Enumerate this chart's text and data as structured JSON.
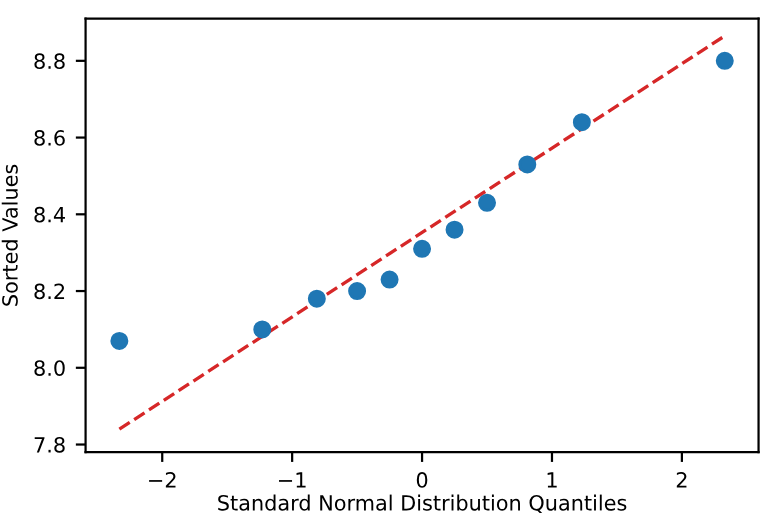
{
  "chart_data": {
    "type": "scatter",
    "xlabel": "Standard Normal Distribution Quantiles",
    "ylabel": "Sorted Values",
    "xlim": [
      -2.59,
      2.59
    ],
    "ylim": [
      7.78,
      8.91
    ],
    "xticks": [
      {
        "value": -2,
        "label": "−2"
      },
      {
        "value": -1,
        "label": "−1"
      },
      0,
      1,
      2
    ],
    "yticks": [
      7.8,
      {
        "value": 8.0,
        "label": "8.0"
      },
      8.2,
      8.4,
      8.6,
      8.8
    ],
    "grid": false,
    "legend": false,
    "marker": "circle",
    "series": [
      {
        "color": "#1f77b4",
        "x": [
          -2.33,
          -1.23,
          -0.81,
          -0.5,
          -0.25,
          0,
          0.25,
          0.5,
          0.81,
          1.23,
          2.33
        ],
        "values": [
          8.07,
          8.1,
          8.18,
          8.2,
          8.23,
          8.31,
          8.36,
          8.43,
          8.53,
          8.64,
          8.8
        ]
      },
      {
        "type": "line",
        "color": "#d62728",
        "line_style": "dashed",
        "marker": "none",
        "x": [
          -2.33,
          2.33
        ],
        "values": [
          7.84,
          8.865
        ]
      }
    ]
  }
}
